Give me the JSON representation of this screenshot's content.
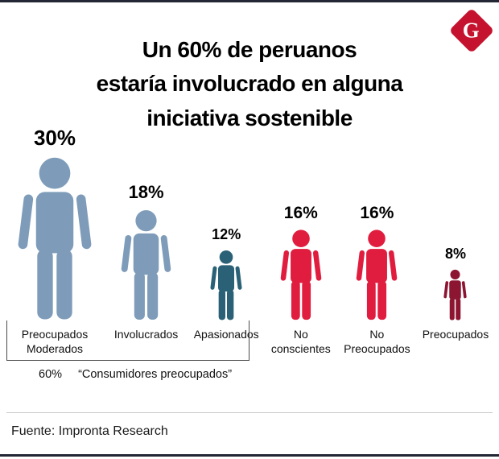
{
  "header": {
    "title_lines": [
      "Un 60% de peruanos",
      "estaría involucrado en alguna",
      "iniciativa sostenible"
    ],
    "logo_letter": "G",
    "logo_color": "#c5122e"
  },
  "chart_data": {
    "type": "pictogram",
    "title": "Un 60% de peruanos estaría involucrado en alguna iniciativa sostenible",
    "unit": "%",
    "items": [
      {
        "label": "Preocupados Moderados",
        "value": 30,
        "value_label": "30%",
        "color": "#7e9cb9"
      },
      {
        "label": "Involucrados",
        "value": 18,
        "value_label": "18%",
        "color": "#7e9cb9"
      },
      {
        "label": "Apasionados",
        "value": 12,
        "value_label": "12%",
        "color": "#2a6176"
      },
      {
        "label": "No conscientes",
        "value": 16,
        "value_label": "16%",
        "color": "#e01d3f"
      },
      {
        "label": "No Preocupados",
        "value": 16,
        "value_label": "16%",
        "color": "#e01d3f"
      },
      {
        "label": "Preocupados",
        "value": 8,
        "value_label": "8%",
        "color": "#8c1631"
      }
    ],
    "group_annotation": {
      "value_label": "60%",
      "text": "“Consumidores preocupados”",
      "covers": [
        "Preocupados Moderados",
        "Involucrados",
        "Apasionados"
      ]
    }
  },
  "footer": {
    "source": "Fuente: Impronta Research"
  }
}
